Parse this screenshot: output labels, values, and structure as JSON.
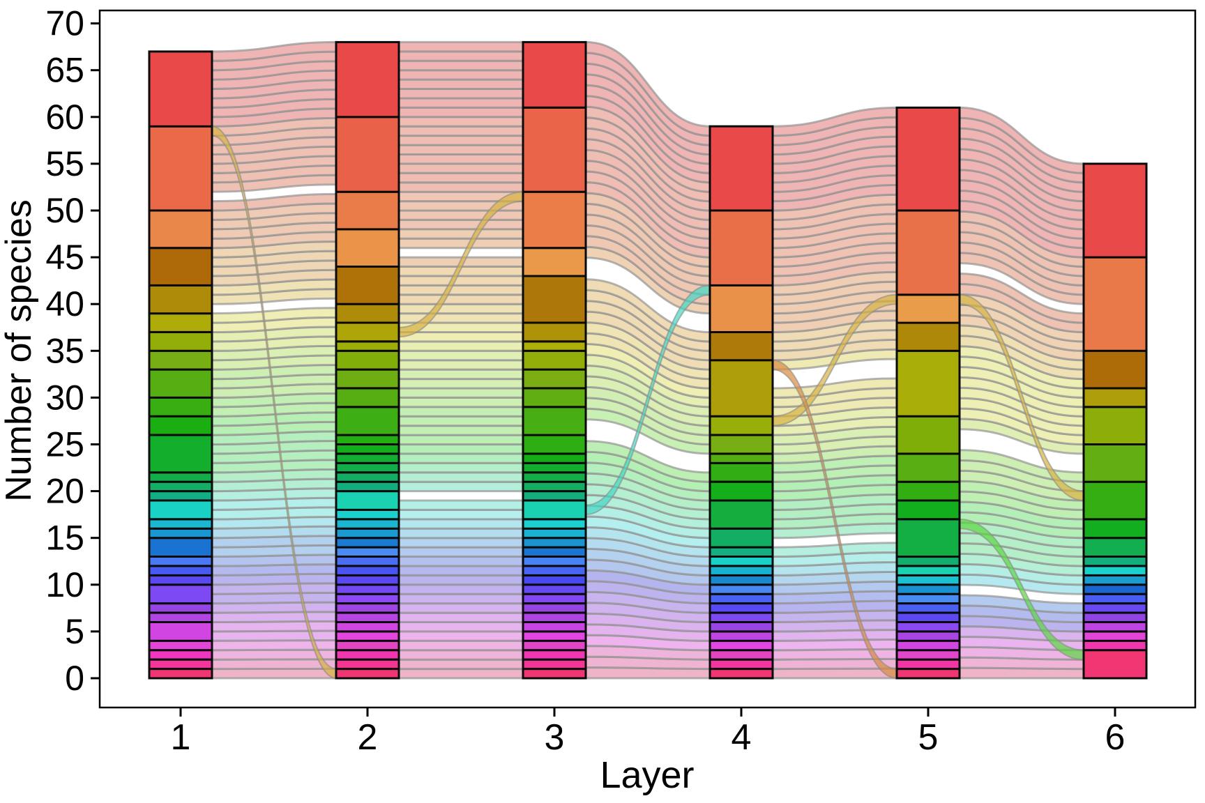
{
  "chart_data": {
    "type": "alluvial",
    "title": "",
    "xlabel": "Layer",
    "ylabel": "Number of species",
    "x_categories": [
      "1",
      "2",
      "3",
      "4",
      "5",
      "6"
    ],
    "y_ticks": [
      0,
      5,
      10,
      15,
      20,
      25,
      30,
      35,
      40,
      45,
      50,
      55,
      60,
      65,
      70
    ],
    "ylim": [
      0,
      70
    ],
    "grid": false,
    "legend": "none",
    "columns": [
      {
        "layer": "1",
        "total": 67,
        "boundaries": [
          0,
          1,
          2,
          3,
          4,
          6,
          7,
          8,
          10,
          11,
          12,
          13,
          15,
          16,
          17,
          19,
          20,
          21,
          22,
          26,
          28,
          30,
          33,
          35,
          37,
          39,
          42,
          46,
          50,
          59,
          67
        ]
      },
      {
        "layer": "2",
        "total": 68,
        "boundaries": [
          0,
          1,
          2,
          3,
          4,
          5,
          6,
          7,
          8,
          9,
          10,
          11,
          12,
          13,
          14,
          15,
          16,
          17,
          18,
          20,
          21,
          22,
          23,
          24,
          25,
          26,
          29,
          31,
          33,
          35,
          36,
          38,
          40,
          44,
          48,
          52,
          60,
          68
        ]
      },
      {
        "layer": "3",
        "total": 68,
        "boundaries": [
          0,
          1,
          2,
          3,
          4,
          5,
          6,
          7,
          8,
          9,
          10,
          11,
          12,
          13,
          14,
          15,
          16,
          17,
          19,
          20,
          21,
          22,
          23,
          24,
          26,
          29,
          31,
          33,
          35,
          36,
          38,
          43,
          46,
          52,
          61,
          68
        ]
      },
      {
        "layer": "4",
        "total": 59,
        "boundaries": [
          0,
          1,
          2,
          3,
          4,
          5,
          6,
          7,
          8,
          9,
          10,
          11,
          12,
          13,
          14,
          16,
          19,
          21,
          23,
          24,
          26,
          28,
          34,
          37,
          42,
          50,
          59
        ]
      },
      {
        "layer": "5",
        "total": 61,
        "boundaries": [
          0,
          1,
          2,
          3,
          4,
          5,
          6,
          7,
          8,
          9,
          10,
          11,
          12,
          13,
          17,
          19,
          21,
          24,
          28,
          35,
          38,
          41,
          50,
          61
        ]
      },
      {
        "layer": "6",
        "total": 55,
        "boundaries": [
          0,
          3,
          4,
          5,
          6,
          7,
          8,
          9,
          10,
          11,
          12,
          13,
          15,
          17,
          21,
          25,
          29,
          31,
          35,
          45,
          55
        ]
      }
    ],
    "flows_special": [
      {
        "from_layer": 1,
        "to_layer": 2,
        "from_span": [
          58,
          59
        ],
        "to_span": [
          0,
          1
        ],
        "hue": 45
      },
      {
        "from_layer": 2,
        "to_layer": 3,
        "from_span": [
          36.5,
          37.5
        ],
        "to_span": [
          51,
          52
        ],
        "hue": 45
      },
      {
        "from_layer": 3,
        "to_layer": 4,
        "from_span": [
          17.5,
          18.5
        ],
        "to_span": [
          41,
          42
        ],
        "hue": 172
      },
      {
        "from_layer": 4,
        "to_layer": 5,
        "from_span": [
          27,
          28
        ],
        "to_span": [
          40,
          41
        ],
        "hue": 45
      },
      {
        "from_layer": 4,
        "to_layer": 5,
        "from_span": [
          33,
          34
        ],
        "to_span": [
          0,
          1
        ],
        "hue": 30
      },
      {
        "from_layer": 5,
        "to_layer": 6,
        "from_span": [
          40,
          41
        ],
        "to_span": [
          19,
          20
        ],
        "hue": 45
      },
      {
        "from_layer": 5,
        "to_layer": 6,
        "from_span": [
          16,
          17
        ],
        "to_span": [
          2,
          3
        ],
        "hue": 110
      }
    ],
    "ribbon_gaps": [
      [
        39,
        51
      ],
      [
        19,
        45
      ],
      [
        22,
        23,
        37,
        38
      ],
      [
        14,
        31,
        32
      ],
      [
        8,
        22,
        23,
        39
      ]
    ],
    "palette": {
      "hue_start": 0,
      "hue_end": 340,
      "stratum_stroke": "#0a0a0a",
      "ribbon_stroke": "#949494",
      "panel_border": "#000000",
      "background": "#ffffff"
    }
  }
}
